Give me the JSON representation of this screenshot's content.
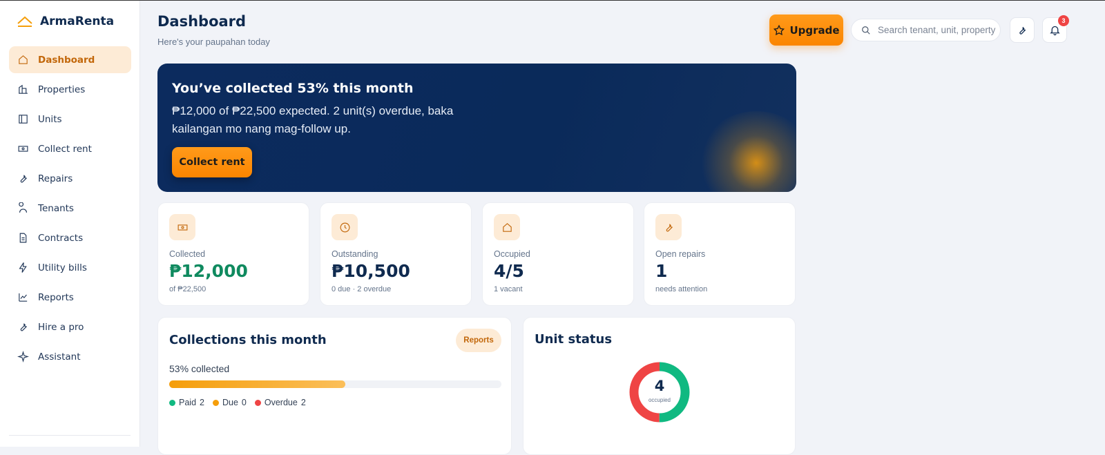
{
  "sidebar": {
    "brand": "ArmaRenta",
    "nav": [
      "Dashboard",
      "Properties",
      "Units",
      "Collect rent",
      "Repairs",
      "Tenants",
      "Contracts",
      "Utility bills",
      "Reports",
      "Hire a pro",
      "Assistant"
    ]
  },
  "header": {
    "title": "Dashboard",
    "subtitle": "Here's your paupahan today",
    "upgrade": "Upgrade",
    "search_placeholder": "Search tenant, unit, property",
    "notification_count": 3
  },
  "hero": {
    "title": "You’ve collected 53% this month",
    "text": "₱12,000 of ₱22,500 expected. 2 unit(s) overdue, baka kailangan mo nang mag-follow up.",
    "button": "Collect rent"
  },
  "stats": [
    {
      "label": "Collected",
      "value": "₱12,000",
      "note": "of ₱22,500"
    },
    {
      "label": "Outstanding",
      "value": "₱10,500",
      "note": "0 due · 2 overdue"
    },
    {
      "label": "Occupied",
      "value": "4/5",
      "note": "1 vacant"
    },
    {
      "label": "Open repairs",
      "value": "1",
      "note": "needs attention"
    }
  ],
  "collections": {
    "title": "Collections this month",
    "link": "Reports",
    "progress_label": "53% collected",
    "progress": 53,
    "legend": [
      {
        "label": "Paid",
        "value": 2,
        "color": "#10b981"
      },
      {
        "label": "Due",
        "value": 0,
        "color": "#f59e0b"
      },
      {
        "label": "Overdue",
        "value": 2,
        "color": "#ef4444"
      }
    ]
  },
  "unit_status": {
    "title": "Unit status",
    "center_value": 4,
    "center_label": "occupied"
  }
}
